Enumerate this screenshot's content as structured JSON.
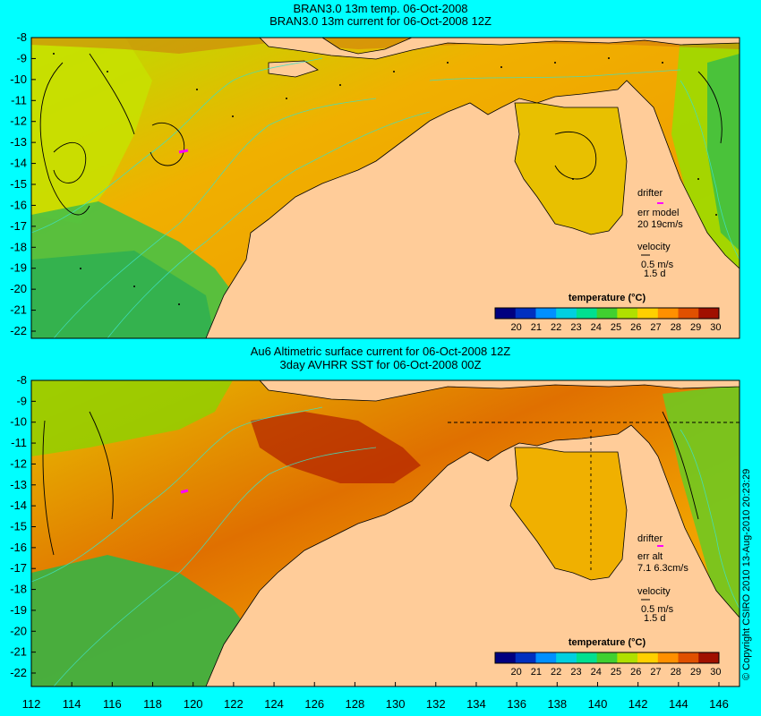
{
  "panels": [
    {
      "title_line1": "BRAN3.0 13m temp. 06-Oct-2008",
      "title_line2": "BRAN3.0 13m current for 06-Oct-2008 12Z",
      "drifter_label": "drifter",
      "err_line1": "err model",
      "err_line2": "20 19cm/s",
      "velocity_label": "velocity",
      "velocity_scale": "0.5 m/s",
      "velocity_time": "1.5 d",
      "colorbar_title": "temperature (°C)"
    },
    {
      "title_line1": "Au6 Altimetric surface current for 06-Oct-2008 12Z",
      "title_line2": "3day AVHRR SST for 06-Oct-2008 00Z",
      "drifter_label": "drifter",
      "err_line1": "err alt",
      "err_line2": "7.1 6.3cm/s",
      "velocity_label": "velocity",
      "velocity_scale": "0.5 m/s",
      "velocity_time": "1.5 d",
      "colorbar_title": "temperature (°C)"
    }
  ],
  "y_axis_labels": [
    "-8",
    "-9",
    "-10",
    "-11",
    "-12",
    "-13",
    "-14",
    "-15",
    "-16",
    "-17",
    "-18",
    "-19",
    "-20",
    "-21",
    "-22"
  ],
  "x_axis_labels": [
    "112",
    "114",
    "116",
    "118",
    "120",
    "122",
    "124",
    "126",
    "128",
    "130",
    "132",
    "134",
    "136",
    "138",
    "140",
    "142",
    "144",
    "146"
  ],
  "colorbar_labels": [
    "20",
    "21",
    "22",
    "23",
    "24",
    "25",
    "26",
    "27",
    "28",
    "29",
    "30"
  ],
  "colorbar_colors": [
    "#000080",
    "#0030c0",
    "#0090ff",
    "#00d0e0",
    "#00e090",
    "#40d030",
    "#b0e000",
    "#ffd000",
    "#ff9000",
    "#e05000",
    "#a01000"
  ],
  "colors": {
    "background": "#00ffff",
    "land": "#ffcc99",
    "ocean_warm": "#f0a000",
    "ocean_mid": "#c8d800",
    "ocean_cool": "#40c040",
    "drifter": "#ff00ff"
  },
  "copyright": "© Copyright CSIRO 2010   13-Aug-2010 20:23:29"
}
